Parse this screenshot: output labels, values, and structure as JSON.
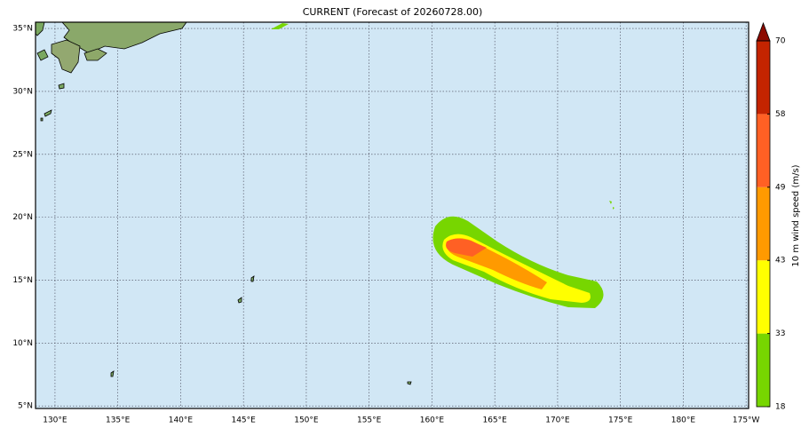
{
  "title": "CURRENT (Forecast of 20260728.00)",
  "map": {
    "lon_range": [
      128.45,
      185.2
    ],
    "lat_range": [
      4.8,
      35.5
    ],
    "lat_ticks": [
      {
        "value": 5,
        "label": "5°N"
      },
      {
        "value": 10,
        "label": "10°N"
      },
      {
        "value": 15,
        "label": "15°N"
      },
      {
        "value": 20,
        "label": "20°N"
      },
      {
        "value": 25,
        "label": "25°N"
      },
      {
        "value": 30,
        "label": "30°N"
      },
      {
        "value": 35,
        "label": "35°N"
      }
    ],
    "lon_ticks": [
      {
        "value": 130,
        "label": "130°E"
      },
      {
        "value": 135,
        "label": "135°E"
      },
      {
        "value": 140,
        "label": "140°E"
      },
      {
        "value": 145,
        "label": "145°E"
      },
      {
        "value": 150,
        "label": "150°E"
      },
      {
        "value": 155,
        "label": "155°E"
      },
      {
        "value": 160,
        "label": "160°E"
      },
      {
        "value": 165,
        "label": "165°E"
      },
      {
        "value": 170,
        "label": "170°E"
      },
      {
        "value": 175,
        "label": "175°E"
      },
      {
        "value": 180,
        "label": "180°E"
      },
      {
        "value": 185,
        "label": "175°W"
      }
    ]
  },
  "colorbar": {
    "label": "10 m wind speed (m/s)",
    "levels": [
      18,
      33,
      43,
      49,
      58,
      70
    ],
    "colors": [
      "#77d600",
      "#ffff00",
      "#ff9a00",
      "#ff6024",
      "#c42400"
    ],
    "extend_color": "#8c0a00"
  }
}
